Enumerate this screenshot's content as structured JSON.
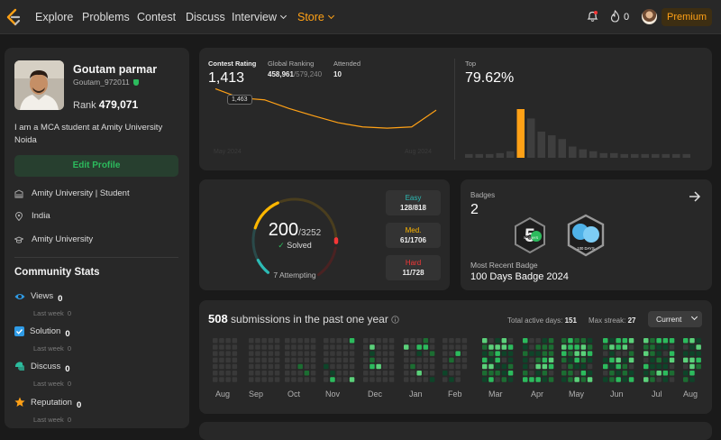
{
  "nav": {
    "links": [
      "Explore",
      "Problems",
      "Contest",
      "Discuss",
      "Interview",
      "Store"
    ],
    "notification_count": "0",
    "premium_label": "Premium"
  },
  "profile": {
    "name": "Goutam parmar",
    "handle": "Goutam_972011",
    "rank_label": "Rank",
    "rank_value": "479,071",
    "bio": "I am a MCA student at Amity University Noida",
    "edit_label": "Edit Profile",
    "info": {
      "education": "Amity University | Student",
      "location": "India",
      "school": "Amity University"
    }
  },
  "community": {
    "title": "Community Stats",
    "stats": [
      {
        "label": "Views",
        "value": "0",
        "last_week_label": "Last week",
        "last_week_value": "0",
        "color": "#2f9be6"
      },
      {
        "label": "Solution",
        "value": "0",
        "last_week_label": "Last week",
        "last_week_value": "0",
        "color": "#2f9be6"
      },
      {
        "label": "Discuss",
        "value": "0",
        "last_week_label": "Last week",
        "last_week_value": "0",
        "color": "#2cbb9d"
      },
      {
        "label": "Reputation",
        "value": "0",
        "last_week_label": "Last week",
        "last_week_value": "0",
        "color": "#ffa116"
      }
    ]
  },
  "contest": {
    "rating_label": "Contest Rating",
    "rating_value": "1,413",
    "global_label": "Global Ranking",
    "global_value": "458,961",
    "global_total": "/579,240",
    "attended_label": "Attended",
    "attended_value": "10",
    "tooltip": "1,463",
    "axis_start": "May 2024",
    "axis_end": "Aug 2024",
    "top_label": "Top",
    "top_value": "79.62%",
    "histogram": [
      4,
      4,
      4,
      5,
      7,
      52,
      42,
      28,
      24,
      20,
      12,
      9,
      7,
      5,
      5,
      4,
      4,
      4,
      4,
      4,
      4,
      4
    ],
    "histogram_highlight": 5
  },
  "chart_data": {
    "type": "line",
    "title": "Contest Rating",
    "x": [
      1,
      2,
      3,
      4,
      5,
      6,
      7,
      8,
      9,
      10
    ],
    "values": [
      1500,
      1463,
      1455,
      1420,
      1390,
      1362,
      1345,
      1340,
      1345,
      1413
    ],
    "xlabel": "",
    "ylabel": "Rating",
    "ylim": [
      1300,
      1520
    ]
  },
  "solved": {
    "solved_value": "200",
    "total": "/3252",
    "solved_label": "Solved",
    "attempting": "7 Attempting",
    "easy_label": "Easy",
    "easy_value": "128/818",
    "medium_label": "Med.",
    "medium_value": "61/1706",
    "hard_label": "Hard",
    "hard_value": "11/728",
    "easy_color": "#2cbbb5",
    "medium_color": "#ffb700",
    "hard_color": "#f63737"
  },
  "badges": {
    "title": "Badges",
    "count": "2",
    "badge1_text": "50 DAYS",
    "badge2_text": "100 DAYS",
    "recent_label": "Most Recent Badge",
    "recent_name": "100 Days Badge 2024"
  },
  "submissions": {
    "count": "508",
    "text": "submissions in the past one year",
    "active_label": "Total active days:",
    "active_value": "151",
    "streak_label": "Max streak:",
    "streak_value": "27",
    "select_label": "Current",
    "months": [
      "Aug",
      "Sep",
      "Oct",
      "Nov",
      "Dec",
      "Jan",
      "Feb",
      "Mar",
      "Apr",
      "May",
      "Jun",
      "Jul",
      "Aug"
    ]
  }
}
